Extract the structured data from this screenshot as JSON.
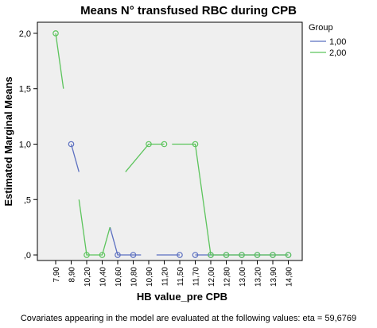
{
  "chart_data": {
    "type": "line",
    "title": "Means N° transfused RBC during CPB",
    "xlabel": "HB value_pre CPB",
    "ylabel": "Estimated Marginal Means",
    "footnote": "Covariates appearing in the model are evaluated at the following values: eta = 59,6769",
    "categories": [
      "7,90",
      "8,90",
      "10,20",
      "10,40",
      "10,60",
      "10,80",
      "10,90",
      "11,20",
      "11,50",
      "11,70",
      "12,00",
      "12,80",
      "13,00",
      "13,20",
      "13,90",
      "14,90"
    ],
    "y_ticks": [
      {
        "value": 0,
        "label": ",0"
      },
      {
        "value": 0.5,
        "label": ",5"
      },
      {
        "value": 1.0,
        "label": "1,0"
      },
      {
        "value": 1.5,
        "label": "1,5"
      },
      {
        "value": 2.0,
        "label": "2,0"
      }
    ],
    "ylim": [
      -0.05,
      2.1
    ],
    "legend": {
      "title": "Group",
      "placement": "right"
    },
    "grid": false,
    "series": [
      {
        "name": "1,00",
        "color": "#5b6fc0",
        "markers": [
          {
            "x": "8,90",
            "y": 1.0
          },
          {
            "x": "10,60",
            "y": 0.0
          },
          {
            "x": "10,80",
            "y": 0.0
          },
          {
            "x": "11,50",
            "y": 0.0
          },
          {
            "x": "11,70",
            "y": 0.0
          },
          {
            "x": "12,00",
            "y": 0.0
          },
          {
            "x": "12,80",
            "y": 0.0
          },
          {
            "x": "13,00",
            "y": 0.0
          },
          {
            "x": "13,20",
            "y": 0.0
          },
          {
            "x": "13,90",
            "y": 0.0
          },
          {
            "x": "14,90",
            "y": 0.0
          }
        ],
        "segments": [
          [
            {
              "x": "8,90",
              "y": 1.0
            },
            {
              "x": 1.5,
              "y": 0.75
            }
          ],
          [
            {
              "x": 3.5,
              "y": 0.25
            },
            {
              "x": "10,60",
              "y": 0.0
            },
            {
              "x": "10,80",
              "y": 0.0
            },
            {
              "x": 5.5,
              "y": 0.0
            }
          ],
          [
            {
              "x": 6.5,
              "y": 0.0
            },
            {
              "x": "11,50",
              "y": 0.0
            },
            {
              "x": 7.5,
              "y": 0.0
            }
          ],
          [
            {
              "x": "11,70",
              "y": 0.0
            },
            {
              "x": "14,90",
              "y": 0.0
            }
          ]
        ]
      },
      {
        "name": "2,00",
        "color": "#5cc45c",
        "markers": [
          {
            "x": "7,90",
            "y": 2.0
          },
          {
            "x": "10,20",
            "y": 0.0
          },
          {
            "x": "10,40",
            "y": 0.0
          },
          {
            "x": "10,90",
            "y": 1.0
          },
          {
            "x": "11,20",
            "y": 1.0
          },
          {
            "x": "11,70",
            "y": 1.0
          },
          {
            "x": "12,00",
            "y": 0.0
          },
          {
            "x": "12,80",
            "y": 0.0
          },
          {
            "x": "13,00",
            "y": 0.0
          },
          {
            "x": "13,20",
            "y": 0.0
          },
          {
            "x": "13,90",
            "y": 0.0
          },
          {
            "x": "14,90",
            "y": 0.0
          }
        ],
        "segments": [
          [
            {
              "x": "7,90",
              "y": 2.0
            },
            {
              "x": 0.5,
              "y": 1.5
            }
          ],
          [
            {
              "x": 1.5,
              "y": 0.5
            },
            {
              "x": "10,20",
              "y": 0.0
            },
            {
              "x": "10,40",
              "y": 0.0
            },
            {
              "x": 3.5,
              "y": 0.25
            }
          ],
          [
            {
              "x": 4.5,
              "y": 0.75
            },
            {
              "x": "10,90",
              "y": 1.0
            },
            {
              "x": "11,20",
              "y": 1.0
            },
            {
              "x": 6.5,
              "y": 1.0
            }
          ],
          [
            {
              "x": 7.5,
              "y": 1.0
            },
            {
              "x": "11,70",
              "y": 1.0
            },
            {
              "x": "12,00",
              "y": 0.0
            },
            {
              "x": "14,90",
              "y": 0.0
            }
          ]
        ]
      }
    ]
  }
}
